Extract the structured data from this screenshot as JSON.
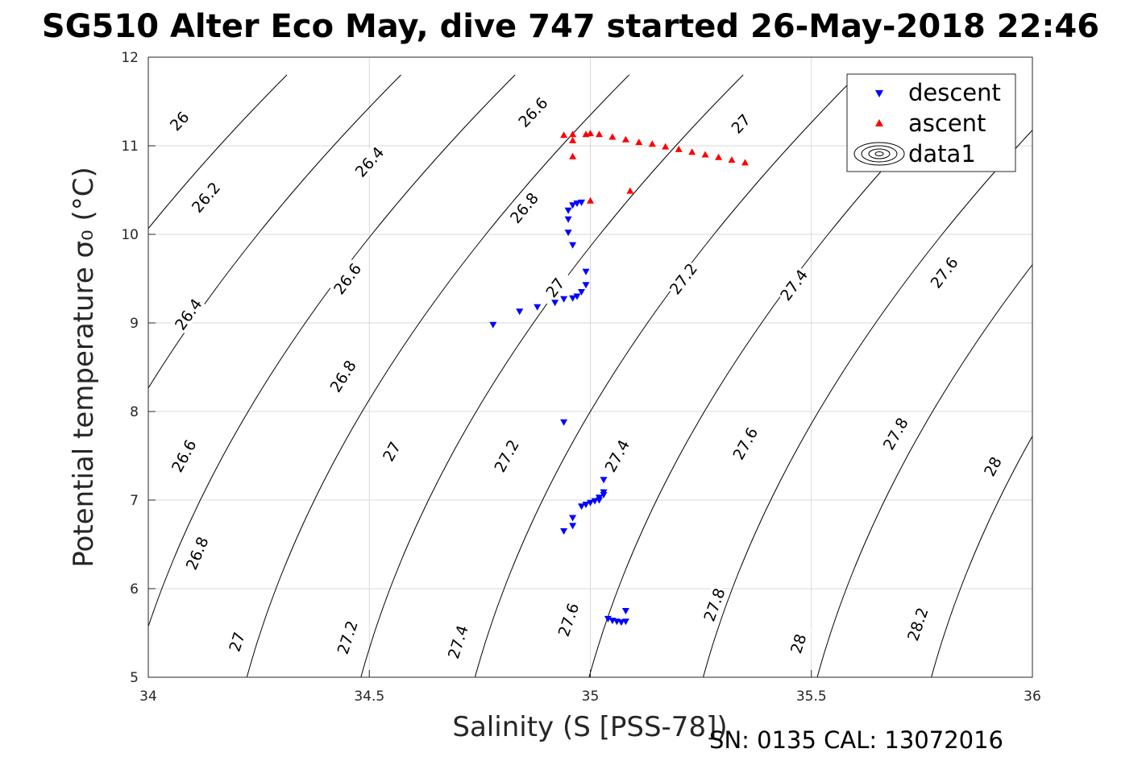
{
  "chart_data": {
    "type": "scatter",
    "title": "SG510 Alter Eco May, dive 747 started 26-May-2018 22:46",
    "xlabel": "Salinity (S [PSS-78])",
    "ylabel": "Potential temperature σ₀ (°C)",
    "footer": "SN: 0135  CAL: 13072016",
    "xlim": [
      34,
      36
    ],
    "ylim": [
      5,
      12
    ],
    "xticks": [
      "34",
      "34.5",
      "35",
      "35.5",
      "36"
    ],
    "yticks": [
      "5",
      "6",
      "7",
      "8",
      "9",
      "10",
      "11",
      "12"
    ],
    "grid": true,
    "legend": {
      "position": "top-right",
      "entries": [
        "descent",
        "ascent",
        "data1"
      ]
    },
    "colors": {
      "descent": "#0000ff",
      "ascent": "#ff0000",
      "contour": "#000000",
      "grid": "#d9d9d9"
    },
    "series": [
      {
        "name": "descent",
        "marker": "triangle-down",
        "points": [
          [
            34.78,
            8.98
          ],
          [
            34.84,
            9.13
          ],
          [
            34.88,
            9.18
          ],
          [
            34.92,
            9.23
          ],
          [
            34.94,
            9.27
          ],
          [
            34.96,
            9.28
          ],
          [
            34.97,
            9.3
          ],
          [
            34.98,
            9.35
          ],
          [
            34.99,
            9.43
          ],
          [
            34.99,
            9.58
          ],
          [
            34.96,
            9.88
          ],
          [
            34.95,
            10.02
          ],
          [
            34.95,
            10.17
          ],
          [
            34.95,
            10.27
          ],
          [
            34.96,
            10.33
          ],
          [
            34.97,
            10.35
          ],
          [
            34.98,
            10.36
          ],
          [
            34.94,
            7.88
          ],
          [
            34.94,
            6.65
          ],
          [
            34.96,
            6.71
          ],
          [
            34.96,
            6.8
          ],
          [
            34.98,
            6.93
          ],
          [
            34.99,
            6.95
          ],
          [
            35.0,
            6.97
          ],
          [
            35.01,
            6.99
          ],
          [
            35.02,
            7.0
          ],
          [
            35.02,
            7.03
          ],
          [
            35.03,
            7.06
          ],
          [
            35.03,
            7.09
          ],
          [
            35.03,
            7.23
          ],
          [
            35.04,
            5.66
          ],
          [
            35.05,
            5.64
          ],
          [
            35.06,
            5.63
          ],
          [
            35.07,
            5.62
          ],
          [
            35.08,
            5.63
          ],
          [
            35.08,
            5.75
          ]
        ]
      },
      {
        "name": "ascent",
        "marker": "triangle-up",
        "points": [
          [
            34.94,
            11.12
          ],
          [
            34.96,
            11.06
          ],
          [
            34.96,
            10.88
          ],
          [
            34.96,
            11.13
          ],
          [
            34.99,
            11.13
          ],
          [
            35.0,
            10.38
          ],
          [
            35.0,
            11.14
          ],
          [
            35.09,
            10.49
          ],
          [
            35.02,
            11.13
          ],
          [
            35.05,
            11.1
          ],
          [
            35.08,
            11.07
          ],
          [
            35.11,
            11.04
          ],
          [
            35.14,
            11.02
          ],
          [
            35.17,
            10.99
          ],
          [
            35.2,
            10.96
          ],
          [
            35.23,
            10.93
          ],
          [
            35.26,
            10.9
          ],
          [
            35.29,
            10.87
          ],
          [
            35.32,
            10.84
          ],
          [
            35.35,
            10.81
          ]
        ]
      }
    ],
    "contours": {
      "name": "data1",
      "variable": "sigma0",
      "levels": [
        {
          "level": "26",
          "labels": [
            [
              34.07,
              11.28
            ]
          ]
        },
        {
          "level": "26.2",
          "labels": [
            [
              34.13,
              10.42
            ]
          ]
        },
        {
          "level": "26.4",
          "labels": [
            [
              34.09,
              9.1
            ],
            [
              34.5,
              10.82
            ]
          ]
        },
        {
          "level": "26.6",
          "labels": [
            [
              34.08,
              7.5
            ],
            [
              34.45,
              9.5
            ],
            [
              34.87,
              11.38
            ]
          ]
        },
        {
          "level": "26.8",
          "labels": [
            [
              34.11,
              6.4
            ],
            [
              34.44,
              8.4
            ],
            [
              34.85,
              10.3
            ]
          ]
        },
        {
          "level": "27",
          "labels": [
            [
              34.2,
              5.4
            ],
            [
              34.55,
              7.55
            ],
            [
              34.92,
              9.4
            ],
            [
              35.34,
              11.25
            ]
          ]
        },
        {
          "level": "27.2",
          "labels": [
            [
              34.45,
              5.45
            ],
            [
              34.81,
              7.5
            ],
            [
              35.21,
              9.5
            ]
          ]
        },
        {
          "level": "27.4",
          "labels": [
            [
              34.7,
              5.4
            ],
            [
              35.06,
              7.5
            ],
            [
              35.46,
              9.43
            ]
          ]
        },
        {
          "level": "27.6",
          "labels": [
            [
              34.95,
              5.65
            ],
            [
              35.35,
              7.64
            ],
            [
              35.8,
              9.57
            ]
          ]
        },
        {
          "level": "27.8",
          "labels": [
            [
              35.28,
              5.82
            ],
            [
              35.69,
              7.75
            ]
          ]
        },
        {
          "level": "28",
          "labels": [
            [
              35.47,
              5.38
            ],
            [
              35.91,
              7.38
            ]
          ]
        },
        {
          "level": "28.2",
          "labels": [
            [
              35.74,
              5.6
            ]
          ]
        }
      ]
    }
  }
}
